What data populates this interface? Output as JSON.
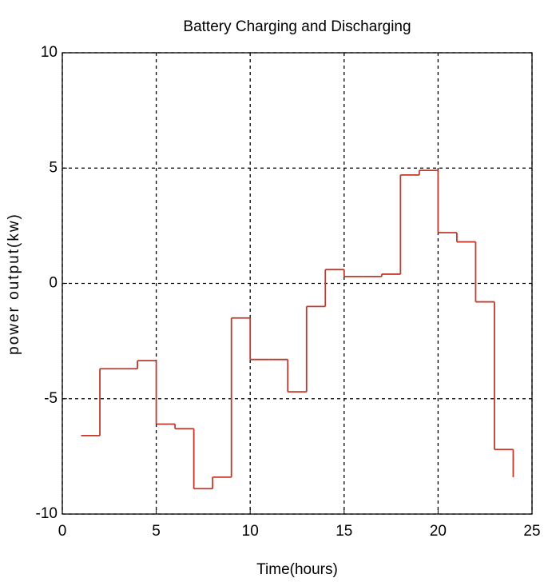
{
  "chart_data": {
    "type": "line",
    "drawstyle": "steps-post",
    "title": "Battery Charging and Discharging",
    "xlabel": "Time(hours)",
    "ylabel": "power output(kw)",
    "x": [
      1,
      2,
      3,
      4,
      5,
      6,
      7,
      8,
      9,
      10,
      11,
      12,
      13,
      14,
      15,
      16,
      17,
      18,
      19,
      20,
      21,
      22,
      23,
      24
    ],
    "values": [
      -6.6,
      -3.7,
      -3.7,
      -3.35,
      -6.1,
      -6.3,
      -8.9,
      -8.4,
      -1.5,
      -3.3,
      -3.3,
      -4.7,
      -1.0,
      0.6,
      0.3,
      0.3,
      0.4,
      4.7,
      4.9,
      2.2,
      1.8,
      -0.8,
      -7.2,
      -8.4
    ],
    "color": "#c0392b",
    "xlim": [
      0,
      25
    ],
    "xticks": [
      0,
      5,
      10,
      15,
      20,
      25
    ],
    "ylim": [
      -10,
      10
    ],
    "yticks": [
      -10,
      -5,
      0,
      5,
      10
    ],
    "grid": true
  }
}
